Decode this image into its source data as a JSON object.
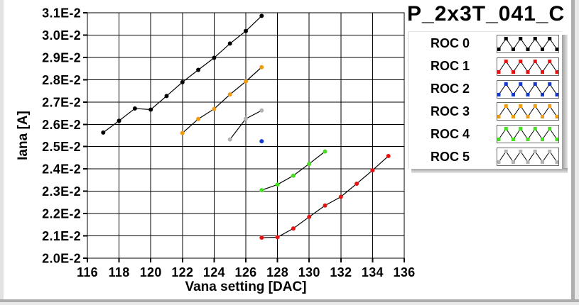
{
  "chart_data": {
    "type": "line",
    "title": "P_2x3T_041_C",
    "xlabel": "Vana setting [DAC]",
    "ylabel": "Iana [A]",
    "xlim": [
      116,
      136
    ],
    "ylim": [
      0.02,
      0.031
    ],
    "grid": true,
    "legend_position": "right",
    "marker": "dot",
    "line_color": "#000000",
    "xticks": [
      {
        "value": 116,
        "label": "116"
      },
      {
        "value": 118,
        "label": "118"
      },
      {
        "value": 120,
        "label": "120"
      },
      {
        "value": 122,
        "label": "122"
      },
      {
        "value": 124,
        "label": "124"
      },
      {
        "value": 126,
        "label": "126"
      },
      {
        "value": 128,
        "label": "128"
      },
      {
        "value": 130,
        "label": "130"
      },
      {
        "value": 132,
        "label": "132"
      },
      {
        "value": 134,
        "label": "134"
      },
      {
        "value": 136,
        "label": "136"
      }
    ],
    "yticks": [
      {
        "value": 0.031,
        "label": "3.1E-2"
      },
      {
        "value": 0.03,
        "label": "3.0E-2"
      },
      {
        "value": 0.029,
        "label": "2.9E-2"
      },
      {
        "value": 0.028,
        "label": "2.8E-2"
      },
      {
        "value": 0.027,
        "label": "2.7E-2"
      },
      {
        "value": 0.026,
        "label": "2.6E-2"
      },
      {
        "value": 0.025,
        "label": "2.5E-2"
      },
      {
        "value": 0.024,
        "label": "2.4E-2"
      },
      {
        "value": 0.023,
        "label": "2.3E-2"
      },
      {
        "value": 0.022,
        "label": "2.2E-2"
      },
      {
        "value": 0.021,
        "label": "2.1E-2"
      },
      {
        "value": 0.02,
        "label": "2.0E-2"
      }
    ],
    "series": [
      {
        "name": "ROC 0",
        "color": "#000000",
        "points": [
          [
            117,
            0.02563
          ],
          [
            118,
            0.02616
          ],
          [
            119,
            0.02671
          ],
          [
            120,
            0.02666
          ],
          [
            121,
            0.02727
          ],
          [
            122,
            0.02789
          ],
          [
            123,
            0.02844
          ],
          [
            124,
            0.02898
          ],
          [
            125,
            0.02962
          ],
          [
            126,
            0.03018
          ],
          [
            127,
            0.03086
          ]
        ]
      },
      {
        "name": "ROC 1",
        "color": "#e51212",
        "points": [
          [
            127,
            0.02092
          ],
          [
            128,
            0.02094
          ],
          [
            129,
            0.02133
          ],
          [
            130,
            0.02185
          ],
          [
            131,
            0.02236
          ],
          [
            132,
            0.02275
          ],
          [
            133,
            0.02334
          ],
          [
            134,
            0.02394
          ],
          [
            135,
            0.02458
          ]
        ]
      },
      {
        "name": "ROC 2",
        "color": "#1239cc",
        "points": [
          [
            127,
            0.02524
          ]
        ]
      },
      {
        "name": "ROC 3",
        "color": "#f09c12",
        "points": [
          [
            122,
            0.02561
          ],
          [
            123,
            0.02624
          ],
          [
            124,
            0.02669
          ],
          [
            125,
            0.02734
          ],
          [
            126,
            0.02792
          ],
          [
            127,
            0.02856
          ]
        ]
      },
      {
        "name": "ROC 4",
        "color": "#46dd22",
        "points": [
          [
            127,
            0.02305
          ],
          [
            128,
            0.0233
          ],
          [
            129,
            0.0237
          ],
          [
            130,
            0.02423
          ],
          [
            131,
            0.02478
          ]
        ]
      },
      {
        "name": "ROC 5",
        "color": "#b3b3b3",
        "points": [
          [
            125,
            0.02532
          ],
          [
            126,
            0.02625
          ],
          [
            127,
            0.02662
          ]
        ]
      }
    ],
    "legend_entries": [
      "ROC 0",
      "ROC 1",
      "ROC 2",
      "ROC 3",
      "ROC 4",
      "ROC 5"
    ]
  }
}
